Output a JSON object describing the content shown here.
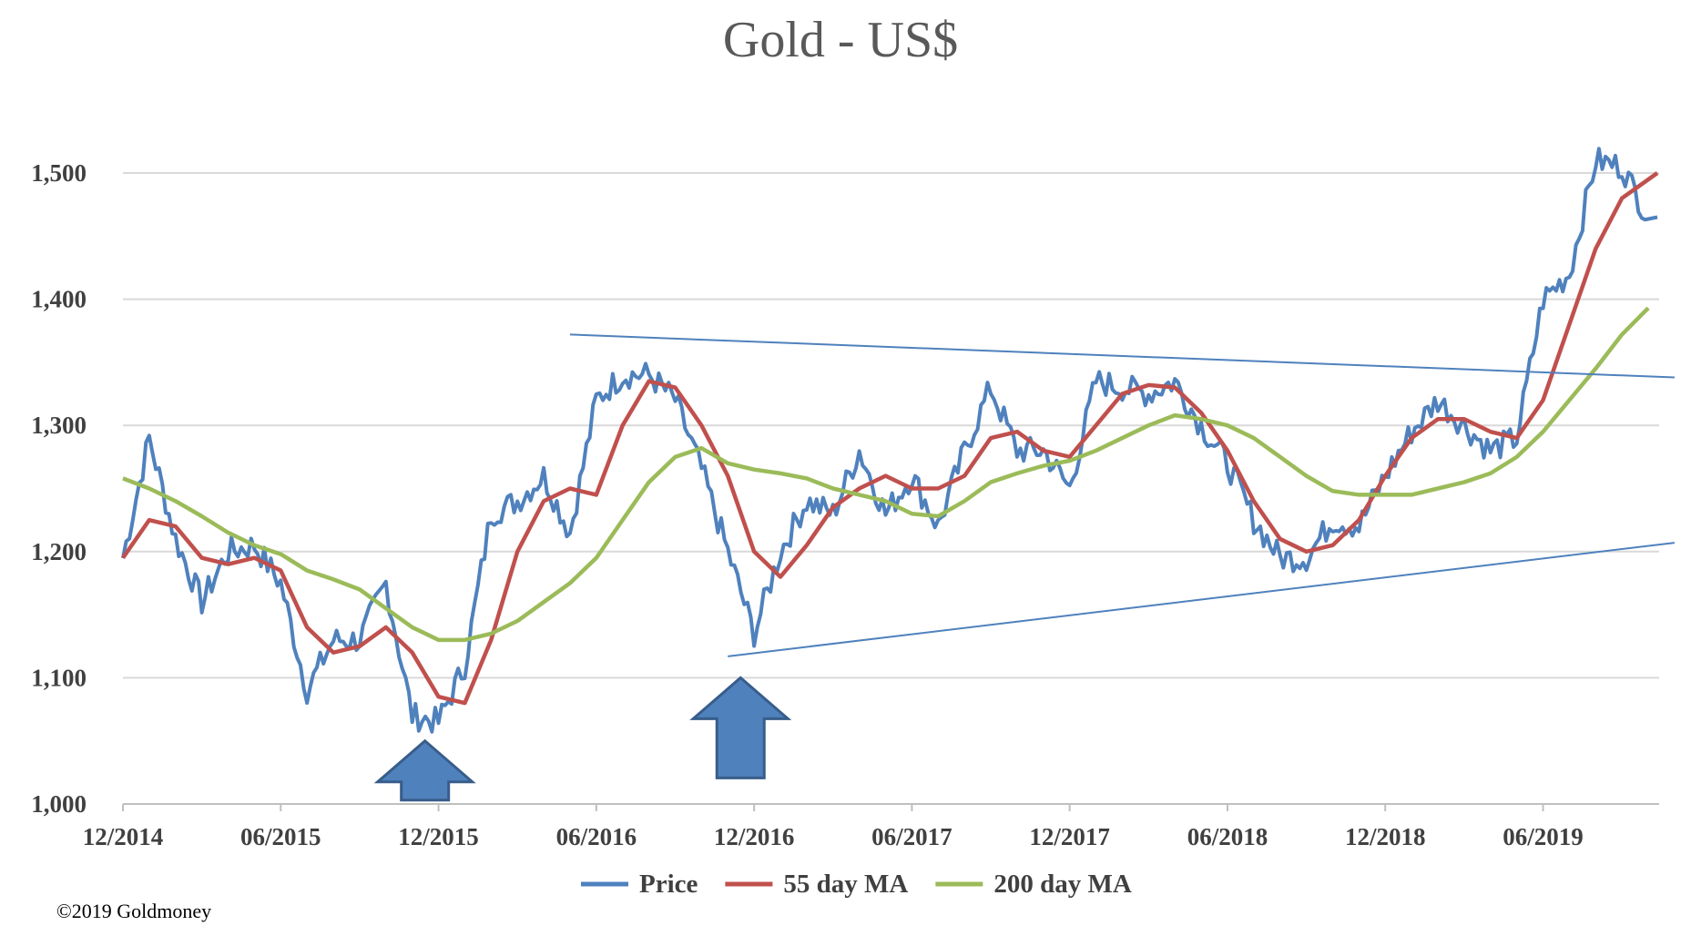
{
  "chart_data": {
    "type": "line",
    "title": "Gold - US$",
    "xlabel": "",
    "ylabel": "",
    "ylim": [
      1000,
      1550
    ],
    "yticks": [
      "1,000",
      "1,100",
      "1,200",
      "1,300",
      "1,400",
      "1,500"
    ],
    "ytick_values": [
      1000,
      1100,
      1200,
      1300,
      1400,
      1500
    ],
    "xticks": [
      "12/2014",
      "06/2015",
      "12/2015",
      "06/2016",
      "12/2016",
      "06/2017",
      "12/2017",
      "06/2018",
      "12/2018",
      "06/2019"
    ],
    "xlim": [
      "2014-12",
      "2019-10"
    ],
    "grid": "horizontal",
    "legend": "bottom",
    "x": [
      "2014-12",
      "2015-01",
      "2015-02",
      "2015-03",
      "2015-04",
      "2015-05",
      "2015-06",
      "2015-07",
      "2015-08",
      "2015-09",
      "2015-10",
      "2015-11",
      "2015-12",
      "2016-01",
      "2016-02",
      "2016-03",
      "2016-04",
      "2016-05",
      "2016-06",
      "2016-07",
      "2016-08",
      "2016-09",
      "2016-10",
      "2016-11",
      "2016-12",
      "2017-01",
      "2017-02",
      "2017-03",
      "2017-04",
      "2017-05",
      "2017-06",
      "2017-07",
      "2017-08",
      "2017-09",
      "2017-10",
      "2017-11",
      "2017-12",
      "2018-01",
      "2018-02",
      "2018-03",
      "2018-04",
      "2018-05",
      "2018-06",
      "2018-07",
      "2018-08",
      "2018-09",
      "2018-10",
      "2018-11",
      "2018-12",
      "2019-01",
      "2019-02",
      "2019-03",
      "2019-04",
      "2019-05",
      "2019-06",
      "2019-07",
      "2019-08",
      "2019-09",
      "2019-10"
    ],
    "series": [
      {
        "name": "Price",
        "color": "#4f81bd",
        "values": [
          1195,
          1290,
          1210,
          1160,
          1200,
          1205,
          1175,
          1090,
          1130,
          1130,
          1175,
          1070,
          1065,
          1110,
          1230,
          1240,
          1260,
          1215,
          1320,
          1340,
          1340,
          1320,
          1265,
          1200,
          1135,
          1200,
          1240,
          1230,
          1280,
          1230,
          1260,
          1220,
          1280,
          1330,
          1280,
          1280,
          1250,
          1335,
          1330,
          1325,
          1335,
          1300,
          1270,
          1225,
          1195,
          1195,
          1225,
          1220,
          1260,
          1295,
          1320,
          1300,
          1280,
          1290,
          1400,
          1420,
          1510,
          1505,
          1465
        ]
      },
      {
        "name": "55 day MA",
        "color": "#c0504d",
        "values": [
          1195,
          1225,
          1220,
          1195,
          1190,
          1195,
          1185,
          1140,
          1120,
          1125,
          1140,
          1120,
          1085,
          1080,
          1130,
          1200,
          1240,
          1250,
          1245,
          1300,
          1335,
          1330,
          1300,
          1260,
          1200,
          1180,
          1205,
          1235,
          1250,
          1260,
          1250,
          1250,
          1260,
          1290,
          1295,
          1280,
          1275,
          1300,
          1325,
          1332,
          1330,
          1310,
          1280,
          1240,
          1210,
          1200,
          1205,
          1225,
          1260,
          1290,
          1305,
          1305,
          1295,
          1290,
          1320,
          1380,
          1440,
          1480,
          1500
        ]
      },
      {
        "name": "200 day MA",
        "color": "#9bbb59",
        "values": [
          1258,
          1250,
          1240,
          1228,
          1215,
          1205,
          1198,
          1185,
          1178,
          1170,
          1155,
          1140,
          1130,
          1130,
          1135,
          1145,
          1160,
          1175,
          1195,
          1225,
          1255,
          1275,
          1282,
          1270,
          1265,
          1262,
          1258,
          1250,
          1245,
          1240,
          1230,
          1228,
          1240,
          1255,
          1262,
          1268,
          1272,
          1280,
          1290,
          1300,
          1308,
          1305,
          1300,
          1290,
          1275,
          1260,
          1248,
          1245,
          1245,
          1245,
          1250,
          1255,
          1262,
          1275,
          1295,
          1320,
          1345,
          1372,
          1393
        ]
      }
    ],
    "annotations": {
      "trendlines": [
        {
          "from": [
            "2016-05",
            1372
          ],
          "to": [
            "2019-11",
            1338
          ],
          "color": "#4f81bd"
        },
        {
          "from": [
            "2016-11",
            1117
          ],
          "to": [
            "2019-11",
            1207
          ],
          "color": "#4f81bd"
        }
      ],
      "arrows": [
        {
          "x": "2015-11",
          "tip": 1050,
          "direction": "up",
          "color": "#4f81bd"
        },
        {
          "x": "2016-11",
          "tip": 1100,
          "direction": "up",
          "color": "#4f81bd"
        }
      ]
    }
  },
  "footer": {
    "copyright": "©2019 Goldmoney"
  }
}
